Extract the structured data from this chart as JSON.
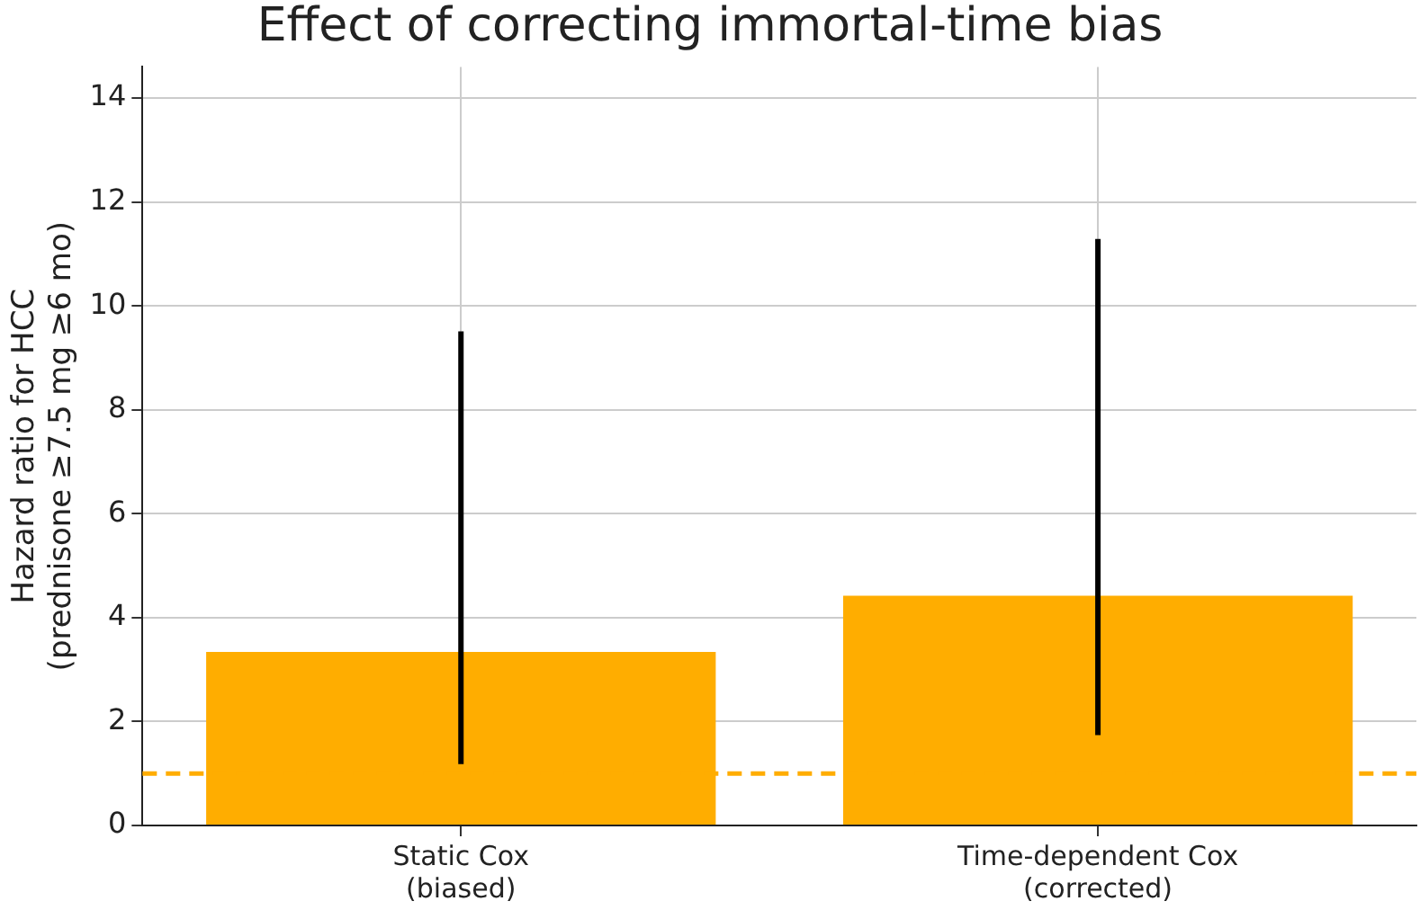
{
  "chart_data": {
    "type": "bar",
    "title": "Effect of correcting immortal-time bias",
    "ylabel": "Hazard ratio for HCC\n(prednisone ≥7.5 mg ≥6 mo)",
    "categories": [
      "Static Cox\n(biased)",
      "Time-dependent Cox\n(corrected)"
    ],
    "values": [
      3.34,
      4.42
    ],
    "color": "#ffad00",
    "errors": [
      [
        1.18,
        9.51
      ],
      [
        1.74,
        11.29
      ]
    ],
    "ylim": [
      0,
      14.6
    ],
    "yticks": [
      0,
      2,
      4,
      6,
      8,
      10,
      12,
      14
    ],
    "grid": true,
    "ref_lines": [
      {
        "axis": "y",
        "value": 1,
        "color": "#ffad00",
        "line_style": "dashed"
      }
    ]
  }
}
